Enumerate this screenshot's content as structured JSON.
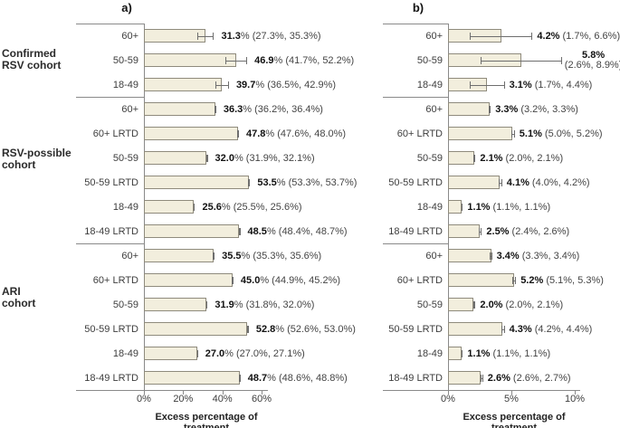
{
  "figure_type": "two-panel horizontal bar chart with 95% CI error bars",
  "colors": {
    "bar_fill": "#f2eedd",
    "bar_border": "#8f8b7d",
    "frame_line": "#8a8a8a",
    "error_bar": "#6e6e6e",
    "bold_text": "#111111",
    "regular_text": "#444444"
  },
  "chart_data": [
    {
      "type": "bar",
      "orientation": "horizontal",
      "title": "a)",
      "xlabel": "Excess percentage of treatment",
      "xlim": [
        0,
        63
      ],
      "x_ticks": [
        0,
        20,
        40,
        60
      ],
      "x_tick_labels": [
        "0%",
        "20%",
        "40%",
        "60%"
      ],
      "grid": false,
      "groups": [
        {
          "name": "Confirmed RSV cohort",
          "label_lines": [
            "Confirmed",
            "RSV cohort"
          ],
          "rows": [
            {
              "label": "60+",
              "value": 31.3,
              "ci": [
                27.3,
                35.3
              ],
              "text_bold": "31.3",
              "text_rest": "% (27.3%, 35.3%)"
            },
            {
              "label": "50-59",
              "value": 46.9,
              "ci": [
                41.7,
                52.2
              ],
              "text_bold": "46.9",
              "text_rest": "% (41.7%, 52.2%)"
            },
            {
              "label": "18-49",
              "value": 39.7,
              "ci": [
                36.5,
                42.9
              ],
              "text_bold": "39.7",
              "text_rest": "% (36.5%, 42.9%)"
            }
          ]
        },
        {
          "name": "RSV-possible cohort",
          "label_lines": [
            "RSV-possible",
            "cohort"
          ],
          "rows": [
            {
              "label": "60+",
              "value": 36.3,
              "ci": [
                36.2,
                36.4
              ],
              "text_bold": "36.3",
              "text_rest": "% (36.2%, 36.4%)"
            },
            {
              "label": "60+ LRTD",
              "value": 47.8,
              "ci": [
                47.6,
                48.0
              ],
              "text_bold": "47.8",
              "text_rest": "% (47.6%, 48.0%)"
            },
            {
              "label": "50-59",
              "value": 32.0,
              "ci": [
                31.9,
                32.1
              ],
              "text_bold": "32.0",
              "text_rest": "% (31.9%, 32.1%)"
            },
            {
              "label": "50-59 LRTD",
              "value": 53.5,
              "ci": [
                53.3,
                53.7
              ],
              "text_bold": "53.5",
              "text_rest": "% (53.3%, 53.7%)"
            },
            {
              "label": "18-49",
              "value": 25.6,
              "ci": [
                25.5,
                25.6
              ],
              "text_bold": "25.6",
              "text_rest": "% (25.5%, 25.6%)"
            },
            {
              "label": "18-49 LRTD",
              "value": 48.5,
              "ci": [
                48.4,
                48.7
              ],
              "text_bold": "48.5",
              "text_rest": "% (48.4%, 48.7%)"
            }
          ]
        },
        {
          "name": "ARI cohort",
          "label_lines": [
            "ARI",
            "cohort"
          ],
          "rows": [
            {
              "label": "60+",
              "value": 35.5,
              "ci": [
                35.3,
                35.6
              ],
              "text_bold": "35.5",
              "text_rest": "% (35.3%, 35.6%)"
            },
            {
              "label": "60+ LRTD",
              "value": 45.0,
              "ci": [
                44.9,
                45.2
              ],
              "text_bold": "45.0",
              "text_rest": "% (44.9%, 45.2%)"
            },
            {
              "label": "50-59",
              "value": 31.9,
              "ci": [
                31.8,
                32.0
              ],
              "text_bold": "31.9",
              "text_rest": "% (31.8%, 32.0%)"
            },
            {
              "label": "50-59 LRTD",
              "value": 52.8,
              "ci": [
                52.6,
                53.0
              ],
              "text_bold": "52.8",
              "text_rest": "% (52.6%, 53.0%)"
            },
            {
              "label": "18-49",
              "value": 27.0,
              "ci": [
                27.0,
                27.1
              ],
              "text_bold": "27.0",
              "text_rest": "% (27.0%, 27.1%)"
            },
            {
              "label": "18-49 LRTD",
              "value": 48.7,
              "ci": [
                48.6,
                48.8
              ],
              "text_bold": "48.7",
              "text_rest": "% (48.6%, 48.8%)"
            }
          ]
        }
      ]
    },
    {
      "type": "bar",
      "orientation": "horizontal",
      "title": "b)",
      "xlabel": "Excess percentage of treatment",
      "xlim": [
        0,
        10.4
      ],
      "x_ticks": [
        0,
        5,
        10
      ],
      "x_tick_labels": [
        "0%",
        "5%",
        "10%"
      ],
      "grid": false,
      "groups": [
        {
          "rows": [
            {
              "label": "60+",
              "value": 4.2,
              "ci": [
                1.7,
                6.6
              ],
              "text_bold": "4.2%",
              "text_rest": " (1.7%, 6.6%)"
            },
            {
              "label": "50-59",
              "value": 5.8,
              "ci": [
                2.6,
                8.9
              ],
              "text_bold": "5.8%",
              "text_rest": "(2.6%, 8.9%)",
              "two_line": true
            },
            {
              "label": "18-49",
              "value": 3.1,
              "ci": [
                1.7,
                4.4
              ],
              "text_bold": "3.1%",
              "text_rest": " (1.7%, 4.4%)"
            }
          ]
        },
        {
          "rows": [
            {
              "label": "60+",
              "value": 3.3,
              "ci": [
                3.2,
                3.3
              ],
              "text_bold": "3.3%",
              "text_rest": " (3.2%, 3.3%)"
            },
            {
              "label": "60+ LRTD",
              "value": 5.1,
              "ci": [
                5.0,
                5.2
              ],
              "text_bold": "5.1%",
              "text_rest": " (5.0%, 5.2%)"
            },
            {
              "label": "50-59",
              "value": 2.1,
              "ci": [
                2.0,
                2.1
              ],
              "text_bold": "2.1%",
              "text_rest": " (2.0%, 2.1%)"
            },
            {
              "label": "50-59 LRTD",
              "value": 4.1,
              "ci": [
                4.0,
                4.2
              ],
              "text_bold": "4.1%",
              "text_rest": " (4.0%, 4.2%)"
            },
            {
              "label": "18-49",
              "value": 1.1,
              "ci": [
                1.1,
                1.1
              ],
              "text_bold": "1.1%",
              "text_rest": " (1.1%, 1.1%)"
            },
            {
              "label": "18-49 LRTD",
              "value": 2.5,
              "ci": [
                2.4,
                2.6
              ],
              "text_bold": "2.5%",
              "text_rest": " (2.4%, 2.6%)"
            }
          ]
        },
        {
          "rows": [
            {
              "label": "60+",
              "value": 3.4,
              "ci": [
                3.3,
                3.4
              ],
              "text_bold": "3.4%",
              "text_rest": " (3.3%, 3.4%)"
            },
            {
              "label": "60+ LRTD",
              "value": 5.2,
              "ci": [
                5.1,
                5.3
              ],
              "text_bold": "5.2%",
              "text_rest": " (5.1%, 5.3%)"
            },
            {
              "label": "50-59",
              "value": 2.0,
              "ci": [
                2.0,
                2.1
              ],
              "text_bold": "2.0%",
              "text_rest": " (2.0%, 2.1%)"
            },
            {
              "label": "50-59 LRTD",
              "value": 4.3,
              "ci": [
                4.2,
                4.4
              ],
              "text_bold": "4.3%",
              "text_rest": " (4.2%, 4.4%)"
            },
            {
              "label": "18-49",
              "value": 1.1,
              "ci": [
                1.1,
                1.1
              ],
              "text_bold": "1.1%",
              "text_rest": " (1.1%, 1.1%)"
            },
            {
              "label": "18-49 LRTD",
              "value": 2.6,
              "ci": [
                2.6,
                2.7
              ],
              "text_bold": "2.6%",
              "text_rest": " (2.6%, 2.7%)"
            }
          ]
        }
      ]
    }
  ]
}
